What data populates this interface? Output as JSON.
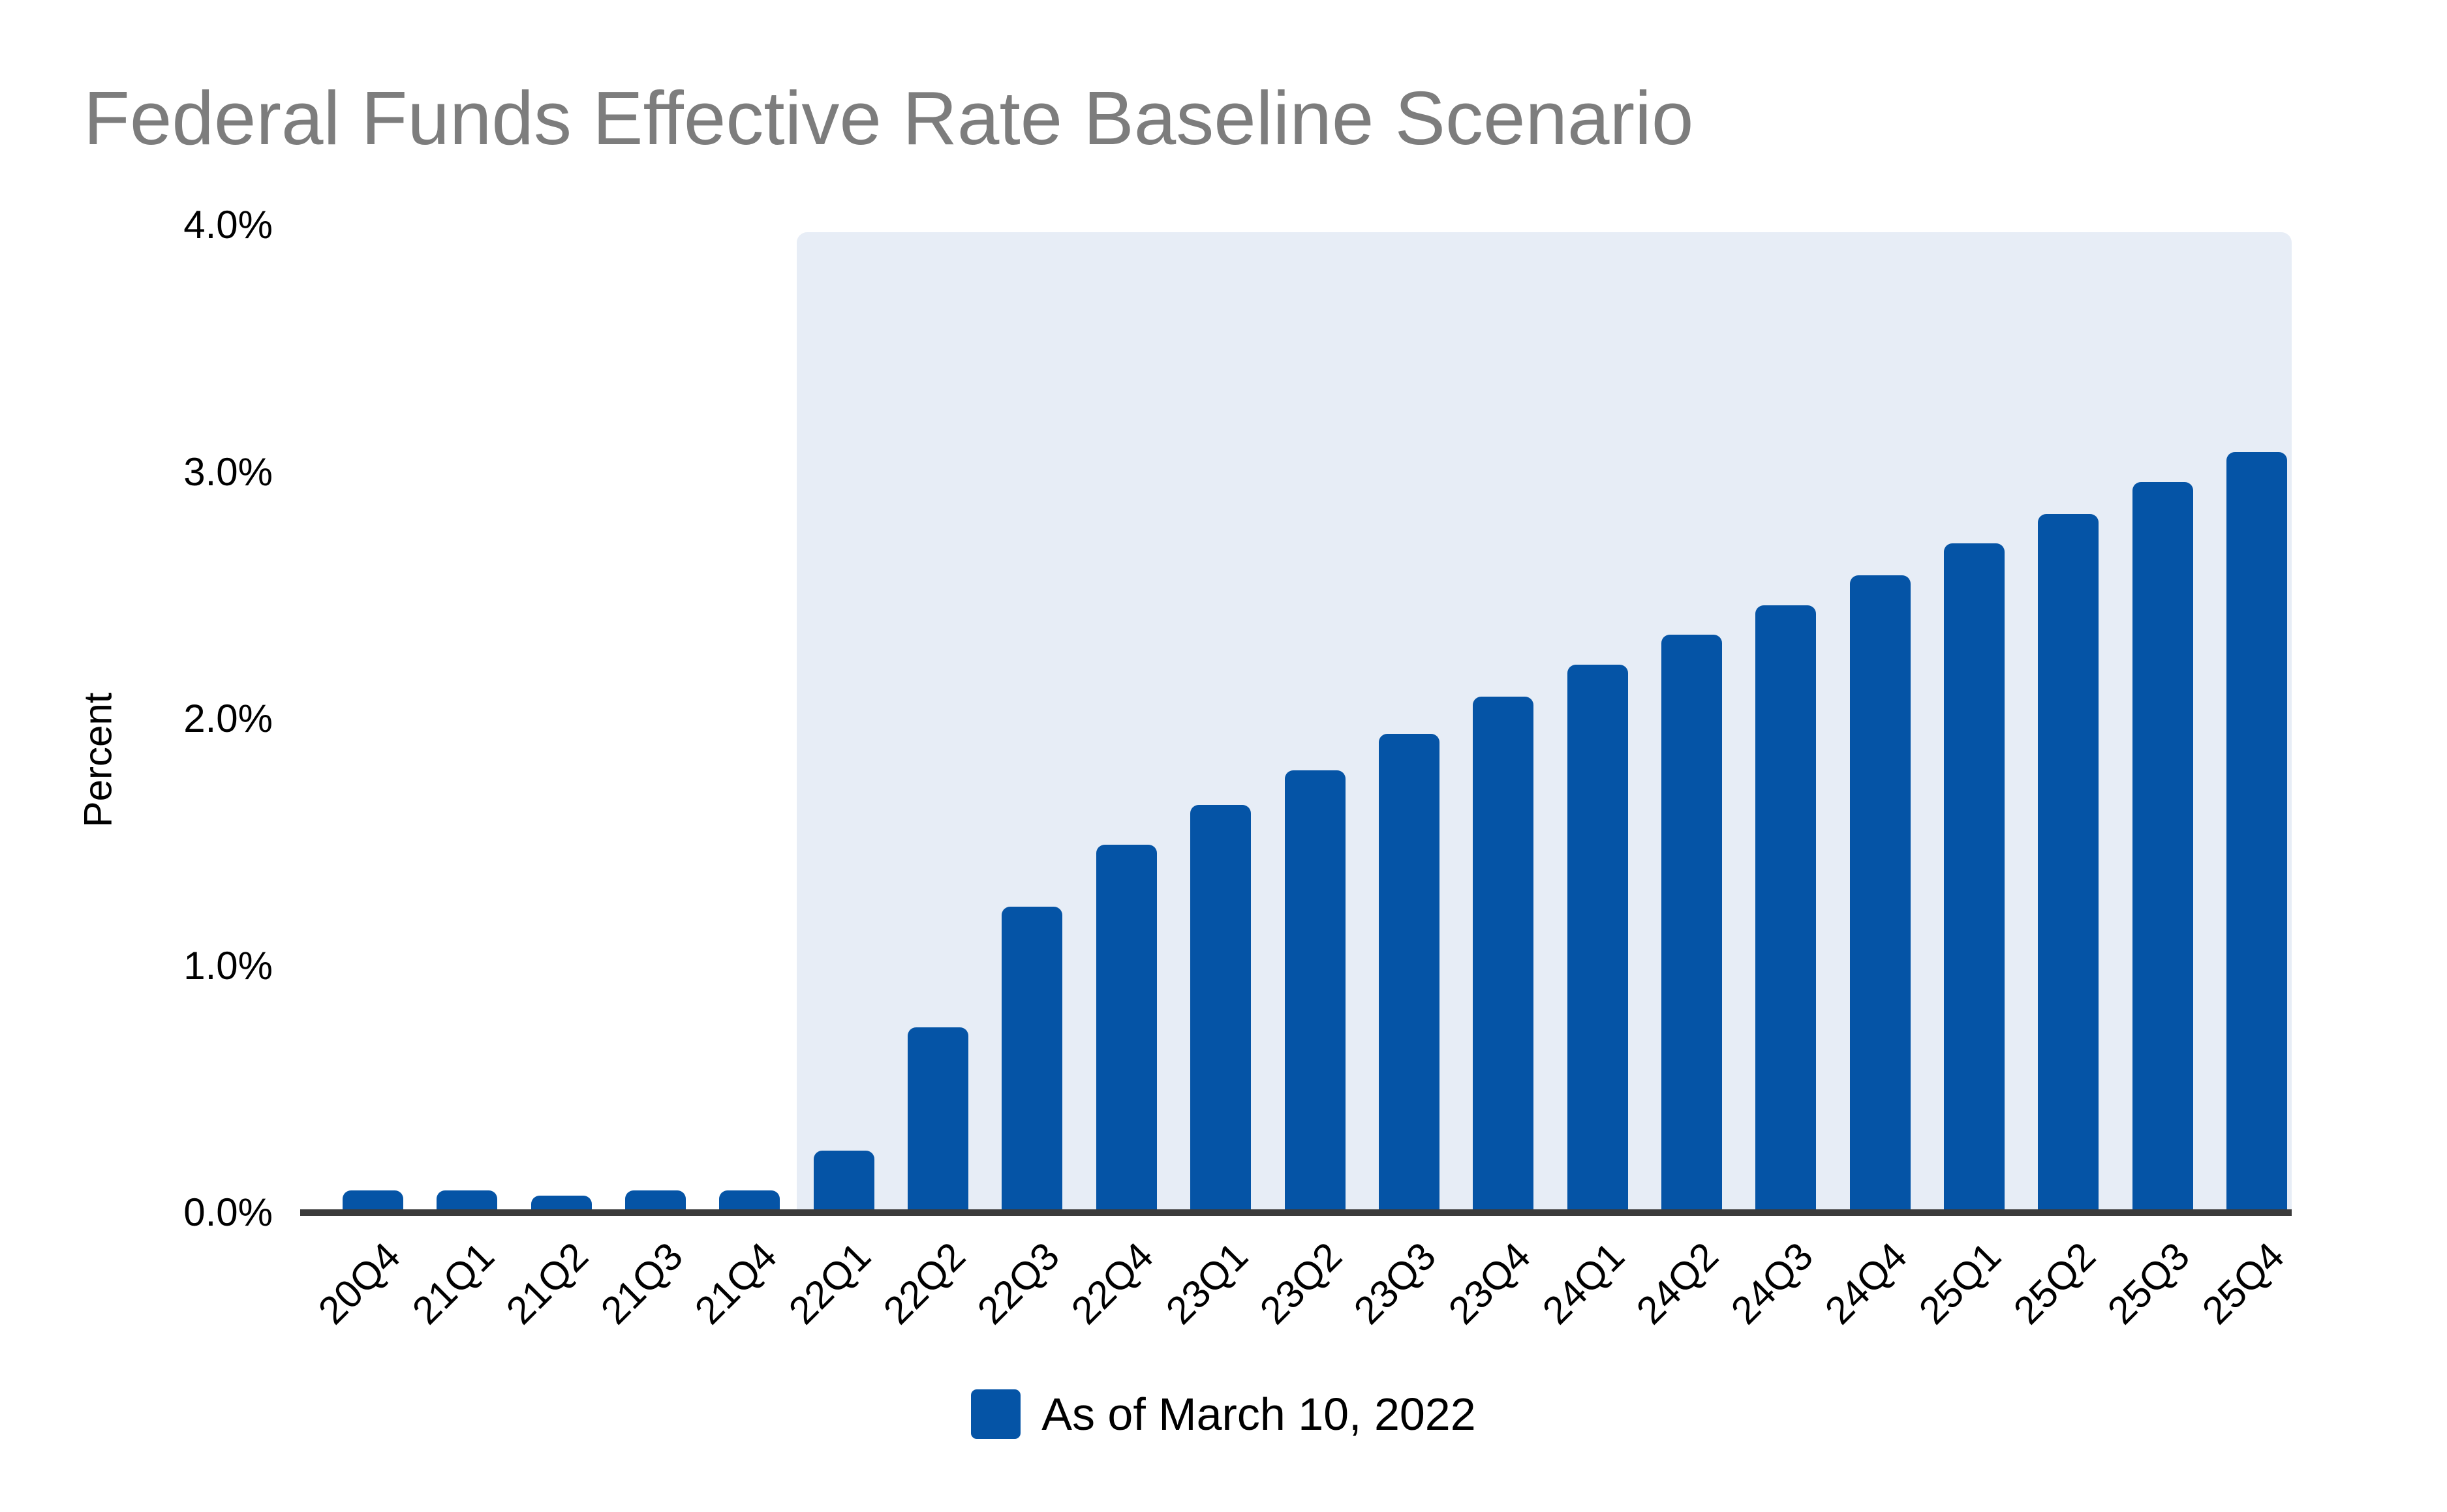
{
  "chart_data": {
    "type": "bar",
    "title": "Federal Funds Effective Rate Baseline Scenario",
    "ylabel": "Percent",
    "categories": [
      "20Q4",
      "21Q1",
      "21Q2",
      "21Q3",
      "21Q4",
      "22Q1",
      "22Q2",
      "22Q3",
      "22Q4",
      "23Q1",
      "23Q2",
      "23Q3",
      "23Q4",
      "24Q1",
      "24Q2",
      "24Q3",
      "24Q4",
      "25Q1",
      "25Q2",
      "25Q3",
      "25Q4"
    ],
    "values": [
      0.09,
      0.09,
      0.07,
      0.09,
      0.09,
      0.25,
      0.75,
      1.24,
      1.49,
      1.65,
      1.79,
      1.94,
      2.09,
      2.22,
      2.34,
      2.46,
      2.58,
      2.71,
      2.83,
      2.96,
      3.08
    ],
    "yticks": [
      "0.0%",
      "1.0%",
      "2.0%",
      "3.0%",
      "4.0%"
    ],
    "ylim": [
      0,
      4
    ],
    "grid": false,
    "legend": [
      {
        "label": "As of March 10, 2022",
        "color": "#0554a6"
      }
    ],
    "legend_position": "bottom-center",
    "forecast_shading": {
      "from_category": "22Q1",
      "to_category": "25Q4",
      "color": "#e7edf6"
    }
  },
  "colors": {
    "bar": "#0554a6",
    "forecast_background": "#e7edf6",
    "title_text": "#7d7d7d",
    "tick_text": "#000000",
    "axis_line": "#3b3b3b",
    "page_background": "#ffffff"
  }
}
